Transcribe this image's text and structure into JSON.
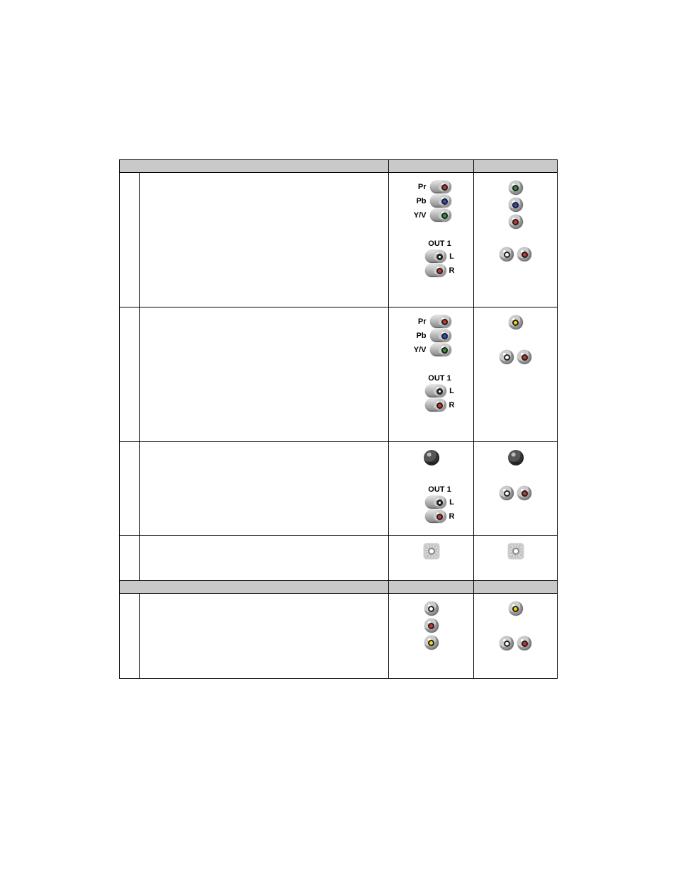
{
  "labels": {
    "pr": "Pr",
    "pb": "Pb",
    "yv": "Y/V",
    "out1": "OUT 1",
    "l": "L",
    "r": "R"
  },
  "colors": {
    "red": "#d23425",
    "blue": "#2a4bd8",
    "green": "#2d9a2d",
    "yellow": "#ffd400",
    "white": "#f5f5f5",
    "black": "#1a1a1a",
    "headerBg": "#c9c9c9"
  },
  "connectors": {
    "component_side": [
      {
        "label": "pr",
        "color": "red"
      },
      {
        "label": "pb",
        "color": "blue"
      },
      {
        "label": "yv",
        "color": "green"
      }
    ],
    "out1_lr_side": [
      {
        "ch": "l",
        "color": "black",
        "centerWhite": true
      },
      {
        "ch": "r",
        "color": "red"
      }
    ],
    "component_vert": [
      {
        "color": "green"
      },
      {
        "color": "blue"
      },
      {
        "color": "red"
      }
    ],
    "audio_pair": [
      {
        "color": "white",
        "centerWhite": true
      },
      {
        "color": "red"
      }
    ],
    "composite_single": {
      "color": "yellow"
    },
    "svideo": {
      "type": "svideo"
    },
    "coax": {
      "type": "coax"
    },
    "composite_rca_vert": [
      {
        "color": "white",
        "centerWhite": true
      },
      {
        "color": "red"
      },
      {
        "color": "yellow"
      }
    ]
  },
  "rows": [
    {
      "height": "cell-tall",
      "col3": [
        "component_side",
        "out1_lr_side"
      ],
      "col4": [
        "component_vert",
        "audio_pair"
      ]
    },
    {
      "height": "cell-tall",
      "col3": [
        "component_side",
        "out1_lr_side"
      ],
      "col4": [
        "composite_single",
        "audio_pair"
      ]
    },
    {
      "height": "cell-mid",
      "col3": [
        "svideo",
        "out1_lr_side"
      ],
      "col4": [
        "svideo",
        "audio_pair"
      ]
    },
    {
      "height": "cell-short",
      "col3": [
        "coax"
      ],
      "col4": [
        "coax"
      ]
    }
  ],
  "section2_row": {
    "height": "cell-vcr",
    "col3": [
      "composite_rca_vert"
    ],
    "col4": [
      "composite_single",
      "audio_pair"
    ]
  }
}
